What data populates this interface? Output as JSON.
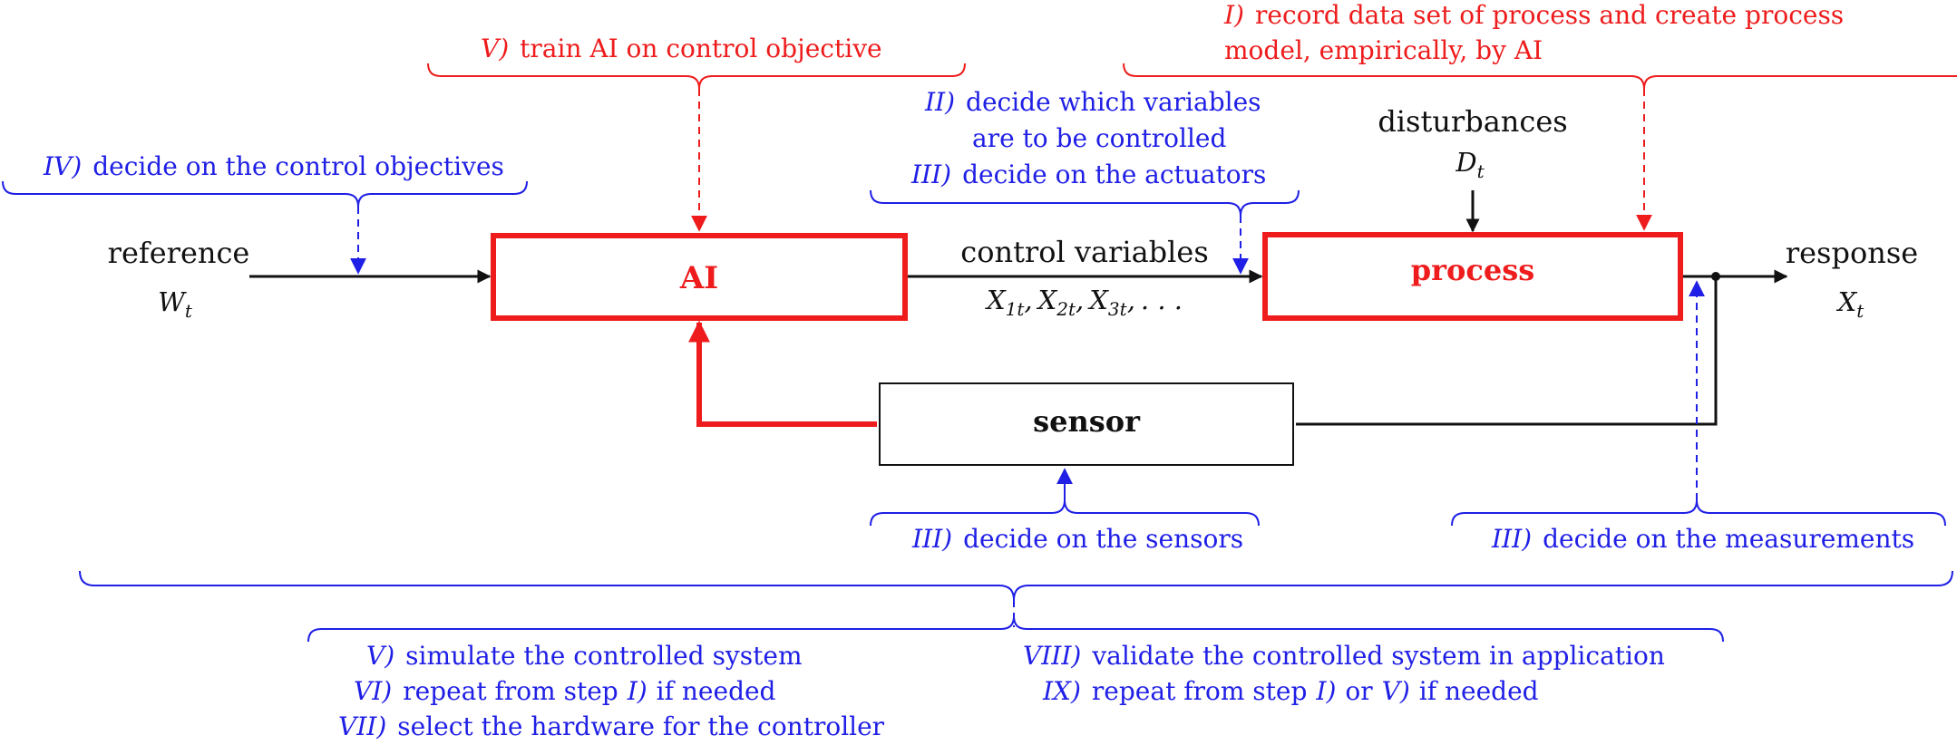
{
  "colors": {
    "red": "#ee1c1c",
    "blue": "#1f1fe6",
    "black": "#111111",
    "box_border": "#111111",
    "background": "#ffffff"
  },
  "blocks": {
    "ai": "AI",
    "process": "process",
    "sensor": "sensor"
  },
  "signals": {
    "reference": "reference",
    "reference_symbol": "W",
    "reference_sub": "t",
    "control_variables": "control variables",
    "control_x1": "X",
    "control_x1_sub": "1t",
    "control_x2": "X",
    "control_x2_sub": "2t",
    "control_x3": "X",
    "control_x3_sub": "3t",
    "control_sep": ",",
    "control_ellipsis": ". . .",
    "disturbances": "disturbances",
    "disturbances_symbol": "D",
    "disturbances_sub": "t",
    "response": "response",
    "response_symbol": "X",
    "response_sub": "t"
  },
  "steps": {
    "step_I_num": "I)",
    "step_I_line1": "record data set of process and create process",
    "step_I_line2": "model, empirically, by AI",
    "step_V_train_num": "V)",
    "step_V_train": "train AI on control objective",
    "step_II_num": "II)",
    "step_II_line1": "decide which variables",
    "step_II_line2": "are to be controlled",
    "step_III_act_num": "III)",
    "step_III_act": "decide on the actuators",
    "step_IV_num": "IV)",
    "step_IV": "decide on the control objectives",
    "step_III_sensors_num": "III)",
    "step_III_sensors": "decide on the sensors",
    "step_III_meas_num": "III)",
    "step_III_meas": "decide on the measurements",
    "step_V_sim_num": "V)",
    "step_V_sim": "simulate the controlled system",
    "step_VI_num": "VI)",
    "step_VI_pre": "repeat from step",
    "step_VI_ref": "I)",
    "step_VI_post": "if needed",
    "step_VII_num": "VII)",
    "step_VII": "select the hardware for the controller",
    "step_VIII_num": "VIII)",
    "step_VIII": "validate the controlled system in application",
    "step_IX_num": "IX)",
    "step_IX_pre": "repeat from step",
    "step_IX_ref1": "I)",
    "step_IX_mid": "or",
    "step_IX_ref2": "V)",
    "step_IX_post": "if needed"
  }
}
